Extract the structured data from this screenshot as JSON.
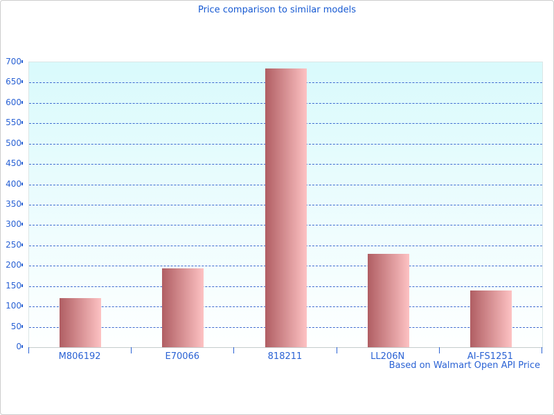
{
  "title": "Price comparison to similar models",
  "caption": "Based on Walmart Open API Price",
  "chart_data": {
    "type": "bar",
    "title": "Price comparison to similar models",
    "categories": [
      "M806192",
      "E70066",
      "818211",
      "LL206N",
      "AI-FS1251"
    ],
    "values": [
      120,
      193,
      684,
      230,
      140
    ],
    "xlabel": "",
    "ylabel": "",
    "ylim": [
      0,
      700
    ],
    "ytick_step": 50,
    "yticks": [
      0,
      50,
      100,
      150,
      200,
      250,
      300,
      350,
      400,
      450,
      500,
      550,
      600,
      650,
      700
    ],
    "grid": "horizontal-dashed",
    "legend": "none",
    "caption": "Based on Walmart Open API Price",
    "colors": {
      "title_text": "#1659d2",
      "axis_label_text": "#2a62d4",
      "gridline": "#3e6ad0",
      "bar_gradient_left": "#b05e63",
      "bar_gradient_right": "#fdc2c3",
      "plot_bg_top": "#d9fafc",
      "plot_bg_bottom": "#feffff",
      "plot_border": "#dbe6e6",
      "axis_line": "#c4cccc",
      "frame_border": "#cccccc"
    }
  }
}
